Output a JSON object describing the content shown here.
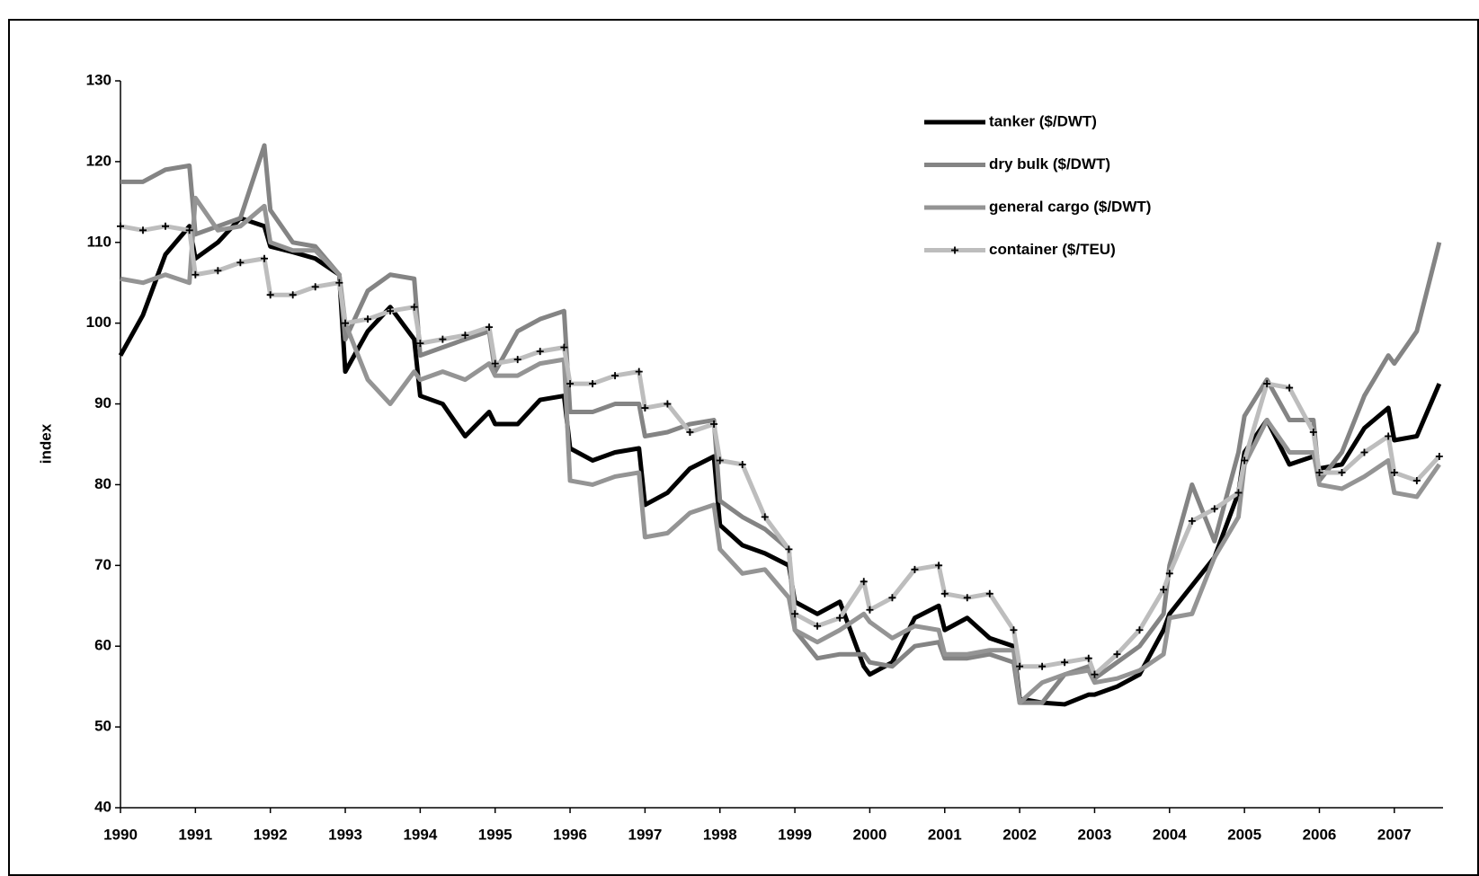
{
  "chart_data": {
    "type": "line",
    "ylabel": "index",
    "x": [
      1990,
      1990.3,
      1990.6,
      1990.92,
      1991,
      1991.3,
      1991.6,
      1991.92,
      1992,
      1992.3,
      1992.6,
      1992.92,
      1993,
      1993.3,
      1993.6,
      1993.92,
      1994,
      1994.3,
      1994.6,
      1994.92,
      1995,
      1995.3,
      1995.6,
      1995.92,
      1996,
      1996.3,
      1996.6,
      1996.92,
      1997,
      1997.3,
      1997.6,
      1997.92,
      1998,
      1998.3,
      1998.6,
      1998.92,
      1999,
      1999.3,
      1999.6,
      1999.92,
      2000,
      2000.3,
      2000.6,
      2000.92,
      2001,
      2001.3,
      2001.6,
      2001.92,
      2002,
      2002.3,
      2002.6,
      2002.92,
      2003,
      2003.3,
      2003.6,
      2003.92,
      2004,
      2004.3,
      2004.6,
      2004.92,
      2005,
      2005.3,
      2005.6,
      2005.92,
      2006,
      2006.3,
      2006.6,
      2006.92,
      2007,
      2007.3,
      2007.6
    ],
    "series": [
      {
        "name": "tanker ($/DWT)",
        "color": "#000000",
        "width": 5,
        "values": [
          96,
          101,
          108.5,
          112,
          108,
          110,
          113,
          112,
          109.5,
          108.8,
          108,
          106,
          94,
          99,
          102,
          98,
          91,
          90,
          86,
          89,
          87.5,
          87.5,
          90.5,
          91,
          84.5,
          83,
          84,
          84.5,
          77.5,
          79,
          82,
          83.5,
          75,
          72.5,
          71.5,
          70,
          65.5,
          64,
          65.5,
          57.5,
          56.5,
          58,
          63.5,
          65,
          62,
          63.5,
          61,
          60,
          53.5,
          53,
          52.8,
          54,
          54,
          55,
          56.5,
          62,
          64,
          67.5,
          71,
          79,
          84,
          88,
          82.5,
          83.5,
          82,
          82.5,
          87,
          89.5,
          85.5,
          86,
          92.5
        ]
      },
      {
        "name": "dry bulk ($/DWT)",
        "color": "#848484",
        "width": 5,
        "values": [
          117.5,
          117.5,
          119,
          119.5,
          111,
          112,
          113,
          122,
          114,
          110,
          109.5,
          106,
          98,
          104,
          106,
          105.5,
          96,
          97,
          98,
          99,
          94,
          99,
          100.5,
          101.5,
          89,
          89,
          90,
          90,
          86,
          86.5,
          87.5,
          88,
          78,
          76,
          74.5,
          72,
          62,
          58.5,
          59,
          59,
          58,
          57.5,
          60,
          60.5,
          58.5,
          58.5,
          59,
          58,
          53,
          53,
          56.5,
          57.5,
          56,
          58,
          60,
          64,
          70,
          80,
          73,
          84,
          88.5,
          93,
          88,
          88,
          80.5,
          84,
          91,
          96,
          95,
          99,
          110
        ]
      },
      {
        "name": "general cargo ($/DWT)",
        "color": "#949494",
        "width": 5,
        "values": [
          105.5,
          105,
          106,
          105,
          115.5,
          111.5,
          112,
          114.5,
          110,
          109,
          109,
          106,
          100,
          93,
          90,
          94,
          93,
          94,
          93,
          95,
          93.5,
          93.5,
          95,
          95.5,
          80.5,
          80,
          81,
          81.5,
          73.5,
          74,
          76.5,
          77.5,
          72,
          69,
          69.5,
          66,
          62,
          60.5,
          62,
          64,
          63,
          61,
          62.5,
          62,
          59,
          59,
          59.5,
          59.5,
          53,
          55.5,
          56.5,
          57,
          55.5,
          56,
          57,
          59,
          63.5,
          64,
          71,
          76,
          82.5,
          88,
          84,
          84,
          80,
          79.5,
          81,
          83,
          79,
          78.5,
          82.5
        ]
      },
      {
        "name": "container ($/TEU)",
        "color": "#bdbdbd",
        "width": 5,
        "marker": "plus",
        "values": [
          112,
          111.5,
          112,
          111.5,
          106,
          106.5,
          107.5,
          108,
          103.5,
          103.5,
          104.5,
          105,
          100,
          100.5,
          101.5,
          102,
          97.5,
          98,
          98.5,
          99.5,
          95,
          95.5,
          96.5,
          97,
          92.5,
          92.5,
          93.5,
          94,
          89.5,
          90,
          86.5,
          87.5,
          83,
          82.5,
          76,
          72,
          64,
          62.5,
          63.5,
          68,
          64.5,
          66,
          69.5,
          70,
          66.5,
          66,
          66.5,
          62,
          57.5,
          57.5,
          58,
          58.5,
          56.5,
          59,
          62,
          67,
          69,
          75.5,
          77,
          79,
          83,
          92.5,
          92,
          86.5,
          81.5,
          81.5,
          84,
          86,
          81.5,
          80.5,
          83.5
        ]
      }
    ],
    "xlim": [
      1990,
      2007.65
    ],
    "xticks": [
      1990,
      1991,
      1992,
      1993,
      1994,
      1995,
      1996,
      1997,
      1998,
      1999,
      2000,
      2001,
      2002,
      2003,
      2004,
      2005,
      2006,
      2007
    ],
    "ylim": [
      40,
      130
    ],
    "yticks": [
      40,
      50,
      60,
      70,
      80,
      90,
      100,
      110,
      120,
      130
    ],
    "grid": false,
    "legend": "upper right"
  }
}
